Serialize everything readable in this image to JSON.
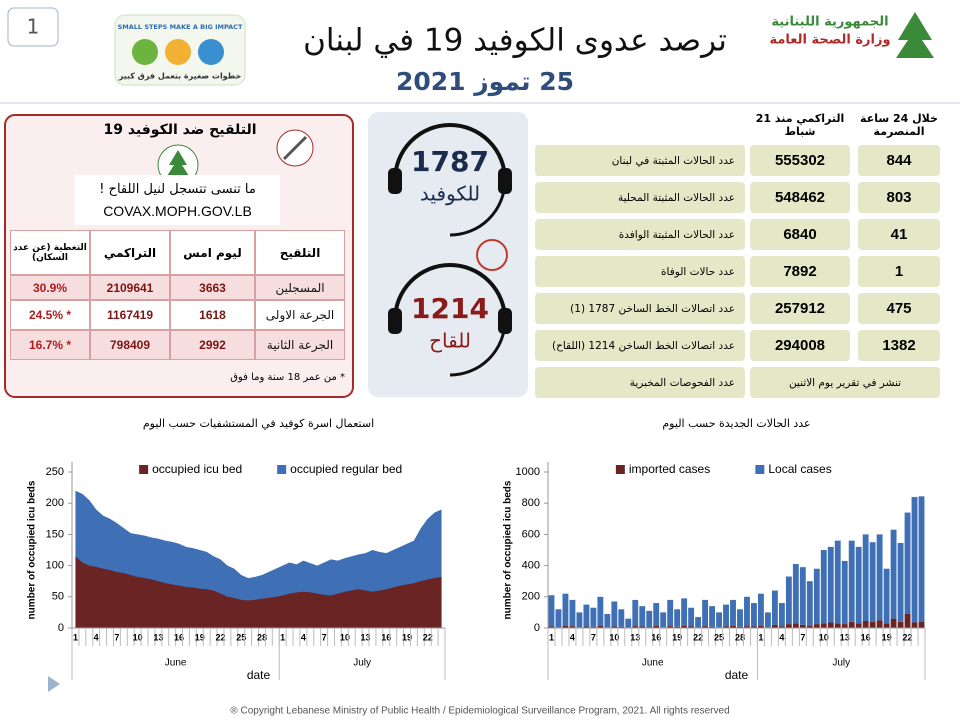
{
  "header": {
    "page_number": "1",
    "title": "ترصد عدوى الكوفيد 19 في لبنان",
    "date": "25 تموز 2021",
    "ministry": [
      "الجمهورية اللبنانية",
      "وزارة الصحة العامة"
    ],
    "campaign": [
      "SMALL STEPS MAKE A BIG IMPACT",
      "خطوات صغيرة بتعمل فرق كبير"
    ]
  },
  "vaccination": {
    "title": "التلقيح ضد الكوفيد 19",
    "reminder": "ما تنسى تتسجل لنيل اللقاح !",
    "url": "COVAX.MOPH.GOV.LB",
    "columns": [
      "التلقيح",
      "ليوم امس",
      "التراكمي",
      "التغطية (عن عدد السكان)"
    ],
    "rows": [
      [
        "المسجلين",
        "3663",
        "2109641",
        "30.9%"
      ],
      [
        "الجرعة الاولى",
        "1618",
        "1167419",
        "* 24.5%"
      ],
      [
        "الجرعة الثانية",
        "2992",
        "798409",
        "* 16.7%"
      ]
    ],
    "note": "* من عمر 18 سنة وما فوق"
  },
  "hotlines": [
    {
      "number": "1787",
      "label": "للكوفيد"
    },
    {
      "number": "1214",
      "label": "للقاح"
    }
  ],
  "stats": {
    "columns": [
      "خلال 24 ساعة المنصرمة",
      "التراكمي منذ 21 شباط"
    ],
    "rows": [
      {
        "label": "عدد الحالات المثبتة في لبنان",
        "cumulative": "555302",
        "last_24h": "844"
      },
      {
        "label": "عدد الحالات المثبتة المحلية",
        "cumulative": "548462",
        "last_24h": "803"
      },
      {
        "label": "عدد الحالات المثبتة الوافدة",
        "cumulative": "6840",
        "last_24h": "41"
      },
      {
        "label": "عدد حالات الوفاة",
        "cumulative": "7892",
        "last_24h": "1"
      },
      {
        "label": "عدد اتصالات الخط الساخن 1787 (1)",
        "cumulative": "257912",
        "last_24h": "475"
      },
      {
        "label": "عدد اتصالات الخط الساخن 1214 (اللقاح)",
        "cumulative": "294008",
        "last_24h": "1382"
      }
    ],
    "tests": {
      "label": "عدد الفحوصات المخبرية",
      "note": "تنشر في تقرير يوم الاثنين"
    }
  },
  "chart_data": [
    {
      "type": "area",
      "stacked": true,
      "title": "استعمال اسرة كوفيد في المستشفيات حسب اليوم",
      "xlabel": "date",
      "ylabel": "number of occupied icu beds",
      "categories": [
        "1",
        null,
        null,
        "4",
        null,
        null,
        "7",
        null,
        null,
        "10",
        null,
        null,
        "13",
        null,
        null,
        "16",
        null,
        null,
        "19",
        null,
        null,
        "22",
        null,
        null,
        "25",
        null,
        null,
        "28",
        null,
        null,
        "1",
        null,
        null,
        "4",
        null,
        null,
        "7",
        null,
        null,
        "10",
        null,
        null,
        "13",
        null,
        null,
        "16",
        null,
        null,
        "19",
        null,
        null,
        "22",
        null,
        null
      ],
      "x_groups": [
        {
          "name": "June",
          "size": 30
        },
        {
          "name": "July",
          "size": 24
        }
      ],
      "ylim": [
        0,
        250
      ],
      "yticks": [
        0,
        50,
        100,
        150,
        200,
        250
      ],
      "series": [
        {
          "name": "occupied icu bed",
          "color": "#6b2424",
          "values": [
            115,
            105,
            100,
            98,
            95,
            93,
            90,
            88,
            85,
            82,
            80,
            78,
            75,
            72,
            70,
            68,
            66,
            65,
            63,
            62,
            60,
            55,
            50,
            48,
            45,
            44,
            45,
            47,
            48,
            50,
            52,
            55,
            57,
            58,
            57,
            55,
            53,
            52,
            55,
            58,
            60,
            62,
            60,
            58,
            60,
            62,
            65,
            68,
            70,
            72,
            75,
            78,
            80,
            82
          ]
        },
        {
          "name": "occupied regular bed",
          "color": "#3f6fb5",
          "values": [
            105,
            110,
            105,
            92,
            85,
            82,
            78,
            72,
            67,
            68,
            68,
            67,
            68,
            68,
            68,
            67,
            64,
            63,
            62,
            60,
            55,
            55,
            50,
            47,
            40,
            36,
            37,
            38,
            42,
            45,
            48,
            50,
            45,
            50,
            47,
            45,
            52,
            58,
            53,
            54,
            55,
            56,
            60,
            67,
            62,
            58,
            60,
            62,
            65,
            68,
            85,
            97,
            105,
            108
          ]
        }
      ]
    },
    {
      "type": "bar",
      "stacked": true,
      "title": "عدد الحالات الجديدة حسب اليوم",
      "xlabel": "date",
      "ylabel": "number of occupied icu beds",
      "categories": [
        "1",
        null,
        null,
        "4",
        null,
        null,
        "7",
        null,
        null,
        "10",
        null,
        null,
        "13",
        null,
        null,
        "16",
        null,
        null,
        "19",
        null,
        null,
        "22",
        null,
        null,
        "25",
        null,
        null,
        "28",
        null,
        null,
        "1",
        null,
        null,
        "4",
        null,
        null,
        "7",
        null,
        null,
        "10",
        null,
        null,
        "13",
        null,
        null,
        "16",
        null,
        null,
        "19",
        null,
        null,
        "22",
        null,
        null
      ],
      "x_groups": [
        {
          "name": "June",
          "size": 30
        },
        {
          "name": "July",
          "size": 24
        }
      ],
      "ylim": [
        0,
        1000
      ],
      "yticks": [
        0,
        200,
        400,
        600,
        800,
        1000
      ],
      "series": [
        {
          "name": "imported cases",
          "color": "#6b2424",
          "values": [
            10,
            5,
            15,
            12,
            5,
            10,
            8,
            15,
            5,
            10,
            8,
            3,
            12,
            10,
            6,
            15,
            5,
            12,
            8,
            15,
            10,
            3,
            12,
            8,
            5,
            10,
            15,
            8,
            12,
            10,
            15,
            5,
            20,
            10,
            25,
            30,
            20,
            15,
            25,
            30,
            35,
            30,
            25,
            40,
            30,
            45,
            40,
            50,
            30,
            60,
            40,
            90,
            35,
            41
          ]
        },
        {
          "name": "Local cases",
          "color": "#3f6fb5",
          "values": [
            200,
            115,
            205,
            168,
            95,
            140,
            122,
            185,
            85,
            160,
            112,
            57,
            168,
            130,
            104,
            145,
            95,
            168,
            112,
            175,
            120,
            67,
            168,
            132,
            95,
            140,
            165,
            112,
            188,
            150,
            205,
            95,
            220,
            150,
            305,
            380,
            370,
            285,
            355,
            470,
            485,
            530,
            405,
            520,
            490,
            555,
            510,
            550,
            350,
            570,
            505,
            650,
            805,
            803
          ]
        }
      ]
    }
  ],
  "footer": "® Copyright Lebanese Ministry of Public Health / Epidemiological Surveillance Program, 2021. All rights reserved"
}
